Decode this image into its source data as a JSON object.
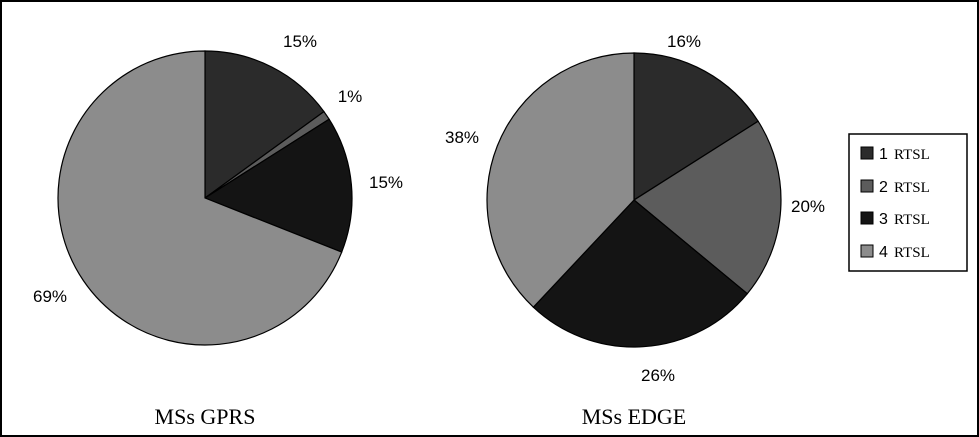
{
  "chart_data": [
    {
      "type": "pie",
      "title": "MSs GPRS",
      "categories": [
        "1 RTSL",
        "2 RTSL",
        "3 RTSL",
        "4 RTSL"
      ],
      "values": [
        15,
        1,
        15,
        69
      ],
      "labels": [
        "15%",
        "1%",
        "15%",
        "69%"
      ]
    },
    {
      "type": "pie",
      "title": "MSs EDGE",
      "categories": [
        "1 RTSL",
        "2 RTSL",
        "3 RTSL",
        "4 RTSL"
      ],
      "values": [
        16,
        20,
        26,
        38
      ],
      "labels": [
        "16%",
        "20%",
        "26%",
        "38%"
      ]
    }
  ],
  "legend": {
    "placement": "right",
    "items": [
      {
        "num": "1",
        "text": "RTSL"
      },
      {
        "num": "2",
        "text": "RTSL"
      },
      {
        "num": "3",
        "text": "RTSL"
      },
      {
        "num": "4",
        "text": "RTSL"
      }
    ]
  },
  "colors": [
    "#2b2b2b",
    "#5c5c5c",
    "#141414",
    "#8c8c8c"
  ]
}
